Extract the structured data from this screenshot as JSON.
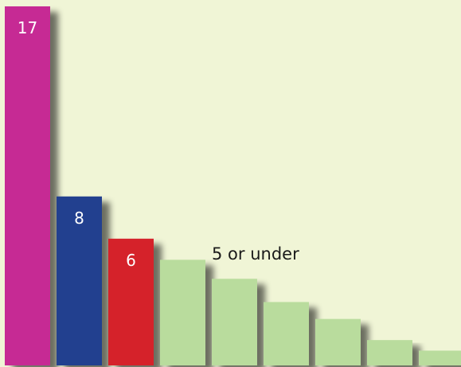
{
  "chart_data": {
    "type": "bar",
    "categories": [
      "",
      "",
      "",
      "",
      "",
      "",
      "",
      "",
      ""
    ],
    "values": [
      17,
      8,
      6,
      5,
      4.1,
      3,
      2.2,
      1.2,
      0.7
    ],
    "value_labels": [
      "17",
      "8",
      "6",
      "",
      "",
      "",
      "",
      "",
      ""
    ],
    "colors": [
      "#c62b94",
      "#233f8f",
      "#d52129",
      "#b9dc9d",
      "#b9dc9d",
      "#b9dc9d",
      "#b9dc9d",
      "#b9dc9d",
      "#b9dc9d"
    ],
    "annotation": "5 or under",
    "ylim": [
      0,
      17
    ],
    "grid": false,
    "legend": "none",
    "title": "",
    "xlabel": "",
    "ylabel": ""
  }
}
